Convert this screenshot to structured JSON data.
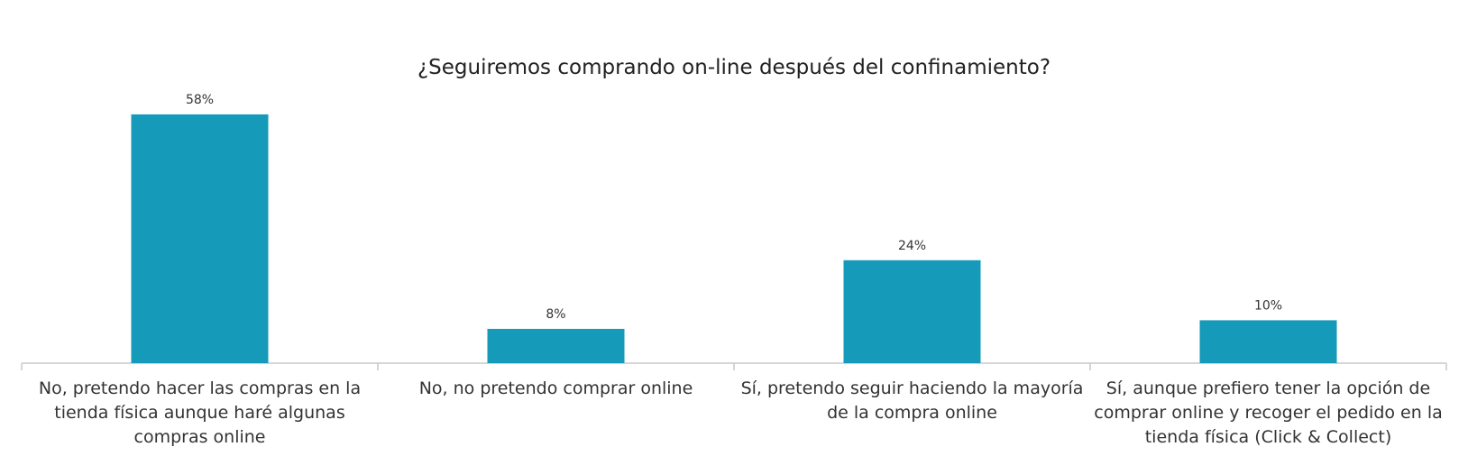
{
  "chart_data": {
    "type": "bar",
    "title": "¿Seguiremos comprando on-line después del confinamiento?",
    "categories": [
      "No, pretendo hacer las compras en la tienda física aunque haré algunas compras online",
      "No, no pretendo comprar online",
      "Sí, pretendo seguir haciendo la mayoría de la compra online",
      "Sí, aunque prefiero tener la opción de comprar online y recoger el pedido en la tienda física (Click & Collect)"
    ],
    "values": [
      58,
      8,
      24,
      10
    ],
    "value_labels": [
      "58%",
      "8%",
      "24%",
      "10%"
    ],
    "color": "#159ab9"
  }
}
